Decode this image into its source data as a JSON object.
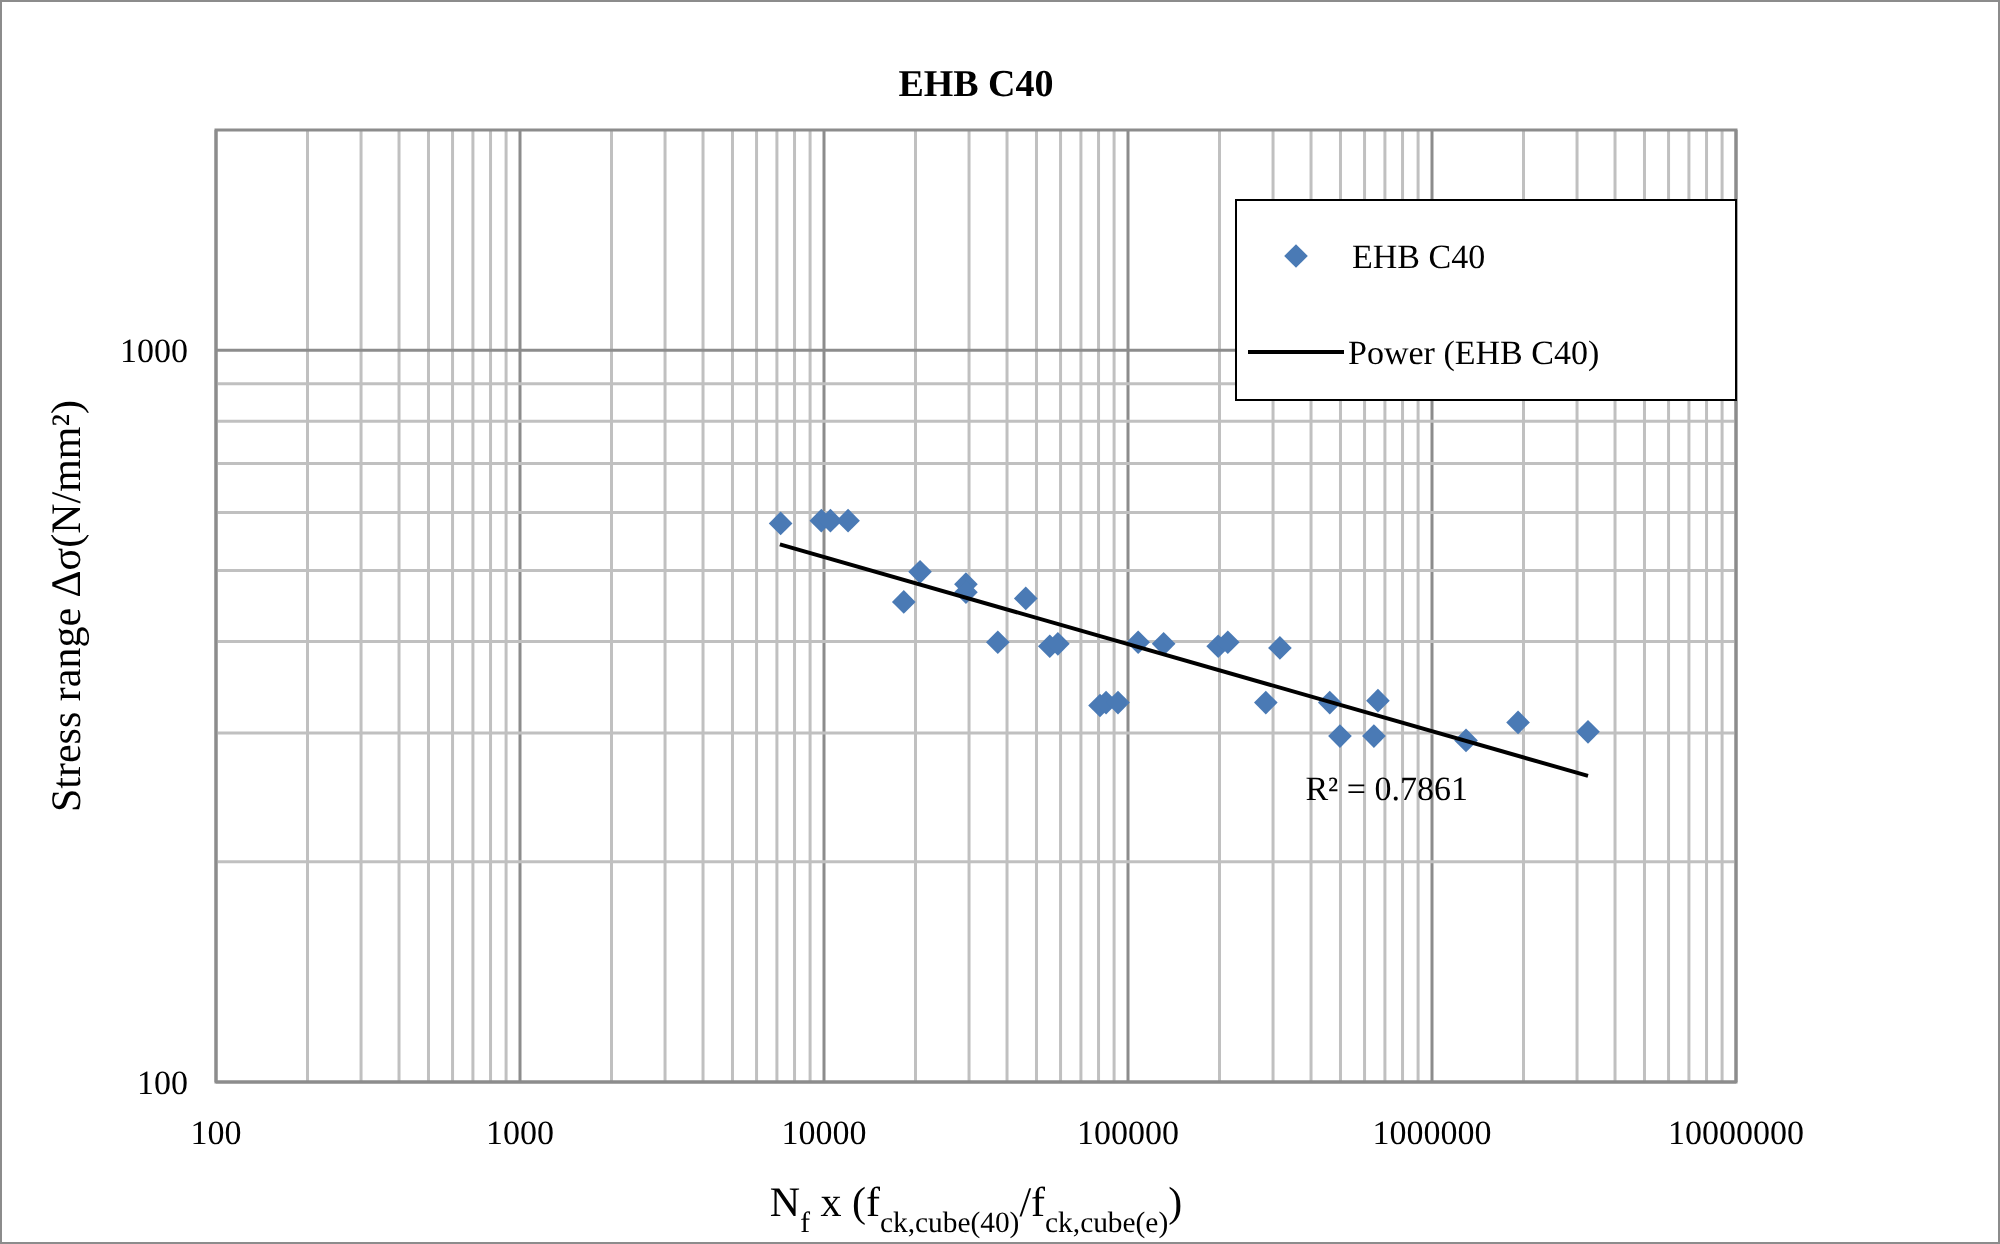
{
  "chart_data": {
    "type": "scatter",
    "title": "EHB C40",
    "xlabel": "N$_{f}$ x (f$_{ck,cube(40)}$/f$_{ck,cube(e)}$)",
    "ylabel": "Stress range Δσ(N/mm²)",
    "log": "xy",
    "grid": true,
    "legend": "top right",
    "marker": "diamond",
    "xlim": [
      100,
      10000000
    ],
    "xticks": [
      100,
      1000,
      10000,
      100000,
      1000000,
      10000000
    ],
    "ylim": [
      100,
      2000
    ],
    "yticks": [
      100,
      1000
    ],
    "series": [
      {
        "name": "EHB C40",
        "color": "#4a7ab5",
        "x": [
          7200,
          9800,
          10500,
          12000,
          18300,
          20700,
          29300,
          29300,
          37300,
          46100,
          55300,
          58800,
          80900,
          84700,
          92700,
          108000,
          131000,
          198000,
          213000,
          316000,
          284000,
          461000,
          498000,
          664000,
          644000,
          1294000,
          1919000,
          3260000
        ],
        "values": [
          580,
          585,
          585,
          585,
          453,
          498,
          479,
          467,
          399,
          458,
          394,
          397,
          327,
          330,
          330,
          399,
          397,
          394,
          399,
          392,
          330,
          330,
          297,
          332,
          297,
          293,
          310,
          301
        ]
      },
      {
        "name": "Power (EHB C40)",
        "color": "#000000",
        "type": "line",
        "marker": "none",
        "line_style": "solid",
        "x": [
          7160,
          3260000
        ],
        "values": [
          543,
          262
        ]
      }
    ],
    "annotations": [
      "R² = 0.7861"
    ]
  }
}
